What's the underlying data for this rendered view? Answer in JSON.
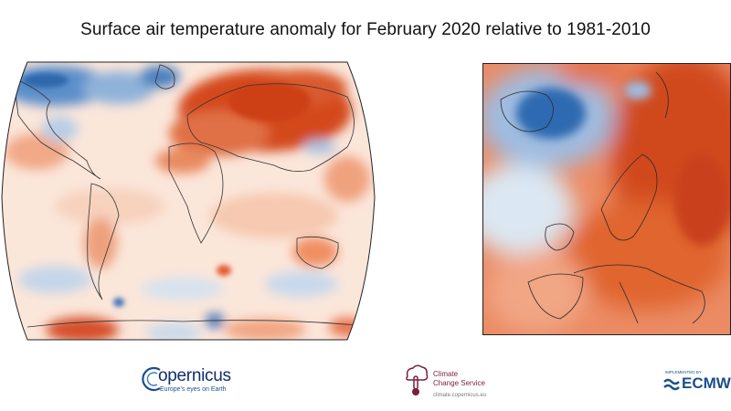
{
  "title": "Surface air temperature anomaly for February 2020 relative to 1981-2010",
  "maps": {
    "world": {
      "region": "Global",
      "projection": "Robinson"
    },
    "europe": {
      "region": "Europe"
    }
  },
  "colors": {
    "warm_strong": "#d4491f",
    "warm_mid": "#ec8a63",
    "warm_light": "#f6cdb6",
    "warm_pale": "#fbe6da",
    "cool_light": "#c8daec",
    "cool_mid": "#7fa7d2",
    "cool_strong": "#2d67ad",
    "border": "#333333"
  },
  "logos": {
    "copernicus": {
      "name": "opernicus",
      "tagline": "Europe's eyes on Earth"
    },
    "c3s": {
      "line1": "Climate",
      "line2": "Change Service",
      "url": "climate.copernicus.eu"
    },
    "ecmwf": {
      "implemented_by": "IMPLEMENTED BY",
      "name": "ECMWF"
    }
  }
}
